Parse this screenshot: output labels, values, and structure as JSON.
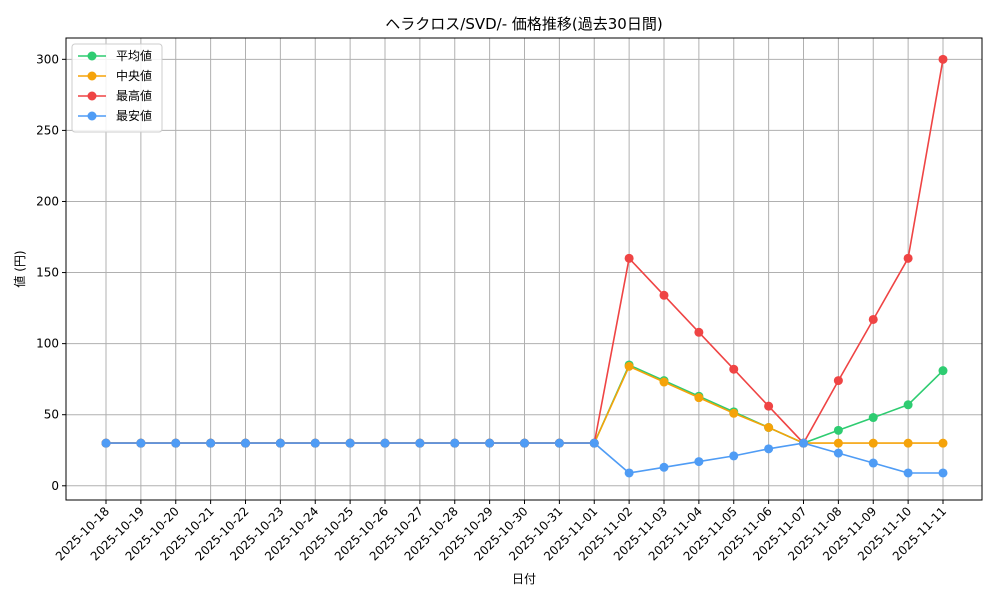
{
  "chart_data": {
    "type": "line",
    "title": "ヘラクロス/SVD/- 価格推移(過去30日間)",
    "xlabel": "日付",
    "ylabel": "値 (円)",
    "categories": [
      "2025-10-18",
      "2025-10-19",
      "2025-10-20",
      "2025-10-21",
      "2025-10-22",
      "2025-10-23",
      "2025-10-24",
      "2025-10-25",
      "2025-10-26",
      "2025-10-27",
      "2025-10-28",
      "2025-10-29",
      "2025-10-30",
      "2025-10-31",
      "2025-11-01",
      "2025-11-02",
      "2025-11-03",
      "2025-11-04",
      "2025-11-05",
      "2025-11-06",
      "2025-11-07",
      "2025-11-08",
      "2025-11-09",
      "2025-11-10",
      "2025-11-11"
    ],
    "ylim": [
      -10,
      315
    ],
    "yticks": [
      0,
      50,
      100,
      150,
      200,
      250,
      300
    ],
    "grid": true,
    "legend_position": "top-left",
    "series": [
      {
        "name": "平均値",
        "color": "#2ecc71",
        "values": [
          30,
          30,
          30,
          30,
          30,
          30,
          30,
          30,
          30,
          30,
          30,
          30,
          30,
          30,
          30,
          85,
          74,
          63,
          52,
          41,
          30,
          39,
          48,
          57,
          81
        ]
      },
      {
        "name": "中央値",
        "color": "#f5a30a",
        "values": [
          30,
          30,
          30,
          30,
          30,
          30,
          30,
          30,
          30,
          30,
          30,
          30,
          30,
          30,
          30,
          84,
          73,
          62,
          51,
          41,
          30,
          30,
          30,
          30,
          30
        ]
      },
      {
        "name": "最高値",
        "color": "#ef4444",
        "values": [
          30,
          30,
          30,
          30,
          30,
          30,
          30,
          30,
          30,
          30,
          30,
          30,
          30,
          30,
          30,
          160,
          134,
          108,
          82,
          56,
          30,
          74,
          117,
          160,
          300
        ]
      },
      {
        "name": "最安値",
        "color": "#4f9cf5",
        "values": [
          30,
          30,
          30,
          30,
          30,
          30,
          30,
          30,
          30,
          30,
          30,
          30,
          30,
          30,
          30,
          9,
          13,
          17,
          21,
          26,
          30,
          23,
          16,
          9,
          9
        ]
      }
    ]
  }
}
